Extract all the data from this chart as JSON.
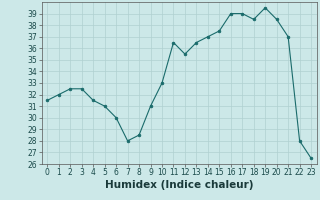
{
  "x": [
    0,
    1,
    2,
    3,
    4,
    5,
    6,
    7,
    8,
    9,
    10,
    11,
    12,
    13,
    14,
    15,
    16,
    17,
    18,
    19,
    20,
    21,
    22,
    23
  ],
  "y": [
    31.5,
    32.0,
    32.5,
    32.5,
    31.5,
    31.0,
    30.0,
    28.0,
    28.5,
    31.0,
    33.0,
    36.5,
    35.5,
    36.5,
    37.0,
    37.5,
    39.0,
    39.0,
    38.5,
    39.5,
    38.5,
    37.0,
    28.0,
    26.5
  ],
  "line_color": "#1a6b6b",
  "marker_color": "#1a6b6b",
  "bg_color": "#cce8e8",
  "grid_color": "#b0d0d0",
  "xlabel": "Humidex (Indice chaleur)",
  "ylim": [
    26,
    40
  ],
  "xlim": [
    -0.5,
    23.5
  ],
  "yticks": [
    26,
    27,
    28,
    29,
    30,
    31,
    32,
    33,
    34,
    35,
    36,
    37,
    38,
    39
  ],
  "xticks": [
    0,
    1,
    2,
    3,
    4,
    5,
    6,
    7,
    8,
    9,
    10,
    11,
    12,
    13,
    14,
    15,
    16,
    17,
    18,
    19,
    20,
    21,
    22,
    23
  ],
  "tick_label_fontsize": 5.5,
  "xlabel_fontsize": 7.5
}
